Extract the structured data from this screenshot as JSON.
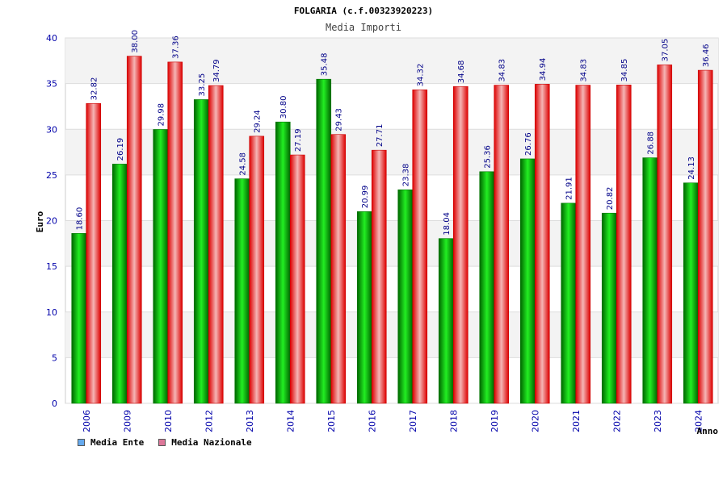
{
  "chart_data": {
    "type": "bar",
    "title": "FOLGARIA (c.f.00323920223)",
    "subtitle": "Media Importi",
    "xlabel": "Anno",
    "ylabel": "Euro",
    "ylim": [
      0,
      40
    ],
    "yticks": [
      "0",
      "5",
      "10",
      "15",
      "20",
      "25",
      "30",
      "35",
      "40"
    ],
    "grid": true,
    "legend_placement": "bottom-left",
    "categories": [
      "2006",
      "2009",
      "2010",
      "2012",
      "2013",
      "2014",
      "2015",
      "2016",
      "2017",
      "2018",
      "2019",
      "2020",
      "2021",
      "2022",
      "2023",
      "2024"
    ],
    "series": [
      {
        "name": "Media Ente",
        "color": "#00aa00",
        "values": [
          18.6,
          26.19,
          29.98,
          33.25,
          24.58,
          30.8,
          35.48,
          20.99,
          23.38,
          18.04,
          25.36,
          26.76,
          21.91,
          20.82,
          26.88,
          24.13
        ],
        "labels": [
          "18.60",
          "26.19",
          "29.98",
          "33.25",
          "24.58",
          "30.80",
          "35.48",
          "20.99",
          "23.38",
          "18.04",
          "25.36",
          "26.76",
          "21.91",
          "20.82",
          "26.88",
          "24.13"
        ]
      },
      {
        "name": "Media Nazionale",
        "color": "#ee2233",
        "values": [
          32.82,
          38.0,
          37.36,
          34.79,
          29.24,
          27.19,
          29.43,
          27.71,
          34.32,
          34.68,
          34.83,
          34.94,
          34.83,
          34.85,
          37.05,
          36.46
        ],
        "labels": [
          "32.82",
          "38.00",
          "37.36",
          "34.79",
          "29.24",
          "27.19",
          "29.43",
          "27.71",
          "34.32",
          "34.68",
          "34.83",
          "34.94",
          "34.83",
          "34.85",
          "37.05",
          "36.46"
        ]
      }
    ]
  },
  "legend": {
    "items": [
      {
        "label": "Media Ente",
        "color": "#66aaee"
      },
      {
        "label": "Media Nazionale",
        "color": "#dd7799"
      }
    ]
  }
}
